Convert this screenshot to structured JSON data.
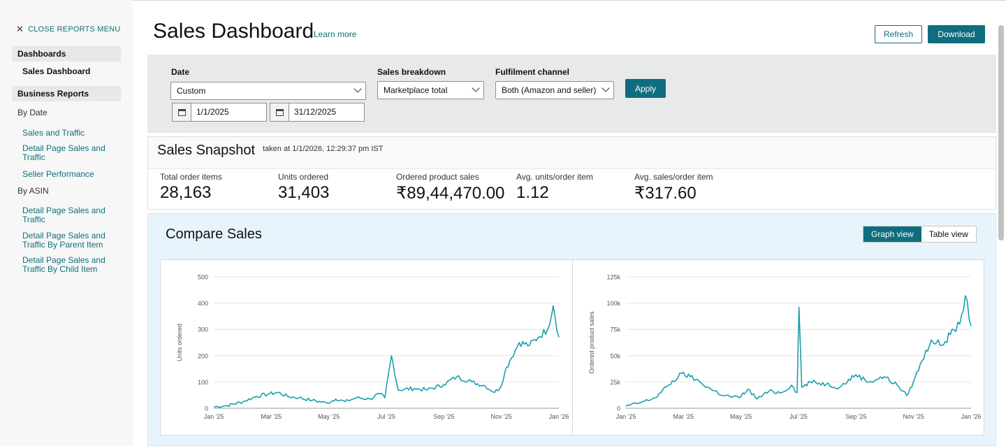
{
  "sidebar": {
    "close_label": "CLOSE REPORTS MENU",
    "dashboards_head": "Dashboards",
    "dashboards_items": [
      "Sales Dashboard"
    ],
    "business_head": "Business Reports",
    "by_date_label": "By Date",
    "by_date_items": [
      "Sales and Traffic",
      "Detail Page Sales and Traffic",
      "Seller Performance"
    ],
    "by_asin_label": "By ASIN",
    "by_asin_items": [
      "Detail Page Sales and Traffic",
      "Detail Page Sales and Traffic By Parent Item",
      "Detail Page Sales and Traffic By Child Item"
    ]
  },
  "header": {
    "title": "Sales Dashboard",
    "learn_more": "Learn more",
    "refresh_label": "Refresh",
    "download_label": "Download"
  },
  "filters": {
    "date_label": "Date",
    "date_value": "Custom",
    "start_date": "1/1/2025",
    "end_date": "31/12/2025",
    "breakdown_label": "Sales breakdown",
    "breakdown_value": "Marketplace total",
    "channel_label": "Fulfilment channel",
    "channel_value": "Both (Amazon and seller)",
    "apply_label": "Apply"
  },
  "snapshot": {
    "title": "Sales Snapshot",
    "taken_at": "taken at 1/1/2026, 12:29:37 pm IST",
    "metrics": [
      {
        "label": "Total order items",
        "value": "28,163"
      },
      {
        "label": "Units ordered",
        "value": "31,403"
      },
      {
        "label": "Ordered product sales",
        "value": "₹89,44,470.00"
      },
      {
        "label": "Avg. units/order item",
        "value": "1.12"
      },
      {
        "label": "Avg. sales/order item",
        "value": "₹317.60"
      }
    ]
  },
  "compare": {
    "title": "Compare Sales",
    "graph_view": "Graph view",
    "table_view": "Table view"
  },
  "colors": {
    "accent": "#0e6e7f",
    "line": "#1a9fae"
  },
  "chart_data": [
    {
      "type": "line",
      "title": "",
      "xlabel": "",
      "ylabel": "Units ordered",
      "xticks": [
        "Jan '25",
        "Mar '25",
        "May '25",
        "Jul '25",
        "Sep '25",
        "Nov '25",
        "Jan '26"
      ],
      "yticks": [
        "0",
        "100",
        "200",
        "300",
        "400",
        "500"
      ],
      "ylim": [
        0,
        500
      ],
      "xlim": [
        "2025-01-01",
        "2026-01-01"
      ],
      "grid": true,
      "series": [
        {
          "x": [
            "2025-01-01",
            "2025-01-15",
            "2025-02-01",
            "2025-02-15",
            "2025-03-01",
            "2025-03-10",
            "2025-03-20",
            "2025-04-01",
            "2025-04-15",
            "2025-05-01",
            "2025-05-10",
            "2025-05-20",
            "2025-06-01",
            "2025-06-15",
            "2025-06-25",
            "2025-07-01",
            "2025-07-08",
            "2025-07-15",
            "2025-08-01",
            "2025-08-15",
            "2025-09-01",
            "2025-09-15",
            "2025-10-01",
            "2025-10-15",
            "2025-10-25",
            "2025-11-01",
            "2025-11-05",
            "2025-11-10",
            "2025-11-20",
            "2025-12-01",
            "2025-12-10",
            "2025-12-20",
            "2025-12-26",
            "2026-01-01"
          ],
          "y": [
            5,
            10,
            25,
            45,
            55,
            60,
            45,
            40,
            30,
            20,
            35,
            25,
            40,
            35,
            55,
            40,
            200,
            70,
            75,
            70,
            90,
            120,
            100,
            85,
            60,
            85,
            140,
            180,
            250,
            240,
            270,
            300,
            390,
            270
          ]
        }
      ]
    },
    {
      "type": "line",
      "title": "",
      "xlabel": "",
      "ylabel": "Ordered product sales",
      "xticks": [
        "Jan '25",
        "Mar '25",
        "May '25",
        "Jul '25",
        "Sep '25",
        "Nov '25",
        "Jan '26"
      ],
      "yticks": [
        "0",
        "25k",
        "50k",
        "75k",
        "100k",
        "125k"
      ],
      "ylim": [
        0,
        125000
      ],
      "xlim": [
        "2025-01-01",
        "2026-01-01"
      ],
      "grid": true,
      "series": [
        {
          "x": [
            "2025-01-01",
            "2025-01-15",
            "2025-02-01",
            "2025-02-15",
            "2025-03-01",
            "2025-03-10",
            "2025-03-20",
            "2025-04-01",
            "2025-04-15",
            "2025-05-01",
            "2025-05-10",
            "2025-05-20",
            "2025-06-01",
            "2025-06-15",
            "2025-06-25",
            "2025-07-01",
            "2025-07-03",
            "2025-07-06",
            "2025-07-15",
            "2025-08-01",
            "2025-08-15",
            "2025-09-01",
            "2025-09-15",
            "2025-10-01",
            "2025-10-15",
            "2025-10-25",
            "2025-11-01",
            "2025-11-10",
            "2025-11-20",
            "2025-12-01",
            "2025-12-10",
            "2025-12-20",
            "2025-12-26",
            "2026-01-01"
          ],
          "y": [
            2000,
            5000,
            10000,
            22000,
            33000,
            30000,
            25000,
            18000,
            12000,
            10000,
            18000,
            9000,
            16000,
            15000,
            22000,
            15000,
            96000,
            20000,
            25000,
            23000,
            20000,
            32000,
            25000,
            30000,
            22000,
            12000,
            25000,
            45000,
            65000,
            60000,
            70000,
            80000,
            107000,
            78000
          ]
        }
      ]
    }
  ]
}
